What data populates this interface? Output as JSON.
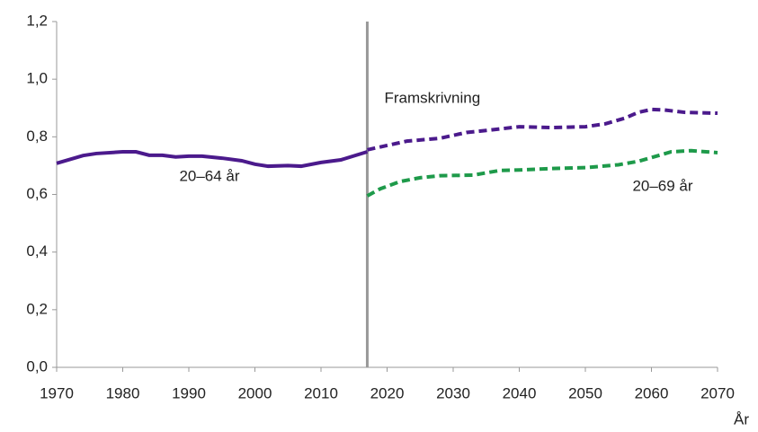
{
  "chart_data": {
    "type": "line",
    "x_label": "År",
    "xlim": [
      1970,
      2070
    ],
    "xticks": [
      1970,
      1980,
      1990,
      2000,
      2010,
      2020,
      2030,
      2040,
      2050,
      2060,
      2070
    ],
    "ylim": [
      0,
      1.2
    ],
    "yticks": [
      {
        "value": 0,
        "label": "0,0"
      },
      {
        "value": 0.2,
        "label": "0,2"
      },
      {
        "value": 0.4,
        "label": "0,4"
      },
      {
        "value": 0.6,
        "label": "0,6"
      },
      {
        "value": 0.8,
        "label": "0,8"
      },
      {
        "value": 1.0,
        "label": "1,0"
      },
      {
        "value": 1.2,
        "label": "1,2"
      }
    ],
    "grid": false,
    "vline": {
      "x": 2017,
      "label": "Framskrivning",
      "color": "#999999"
    },
    "series": [
      {
        "name": "20–64 år",
        "color": "#4b1a8c",
        "dashed": false,
        "x": [
          1970,
          1974,
          1976,
          1980,
          1982,
          1984,
          1986,
          1988,
          1990,
          1992,
          1995,
          1998,
          2000,
          2002,
          2005,
          2007,
          2010,
          2013,
          2017
        ],
        "values": [
          0.708,
          0.735,
          0.742,
          0.748,
          0.748,
          0.736,
          0.736,
          0.73,
          0.733,
          0.733,
          0.726,
          0.717,
          0.705,
          0.698,
          0.7,
          0.698,
          0.711,
          0.72,
          0.748
        ]
      },
      {
        "color": "#4b1a8c",
        "dashed": true,
        "x": [
          2017,
          2020,
          2023,
          2028,
          2030,
          2032,
          2035,
          2040,
          2043,
          2045,
          2050,
          2053,
          2056,
          2058,
          2060,
          2062,
          2065,
          2070
        ],
        "values": [
          0.755,
          0.77,
          0.785,
          0.795,
          0.805,
          0.815,
          0.822,
          0.835,
          0.833,
          0.832,
          0.835,
          0.845,
          0.865,
          0.885,
          0.895,
          0.893,
          0.885,
          0.882
        ]
      },
      {
        "name": "20–69 år",
        "color": "#1e9a4a",
        "dashed": true,
        "x": [
          2017,
          2019,
          2022,
          2025,
          2028,
          2033,
          2037,
          2040,
          2045,
          2050,
          2055,
          2058,
          2060,
          2063,
          2066,
          2070
        ],
        "values": [
          0.595,
          0.62,
          0.645,
          0.658,
          0.665,
          0.667,
          0.683,
          0.685,
          0.69,
          0.693,
          0.703,
          0.715,
          0.728,
          0.748,
          0.752,
          0.745
        ]
      }
    ]
  }
}
